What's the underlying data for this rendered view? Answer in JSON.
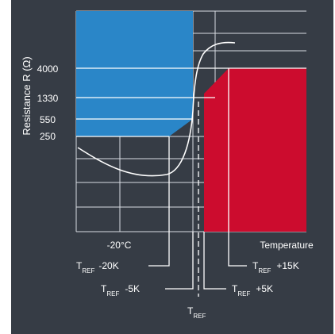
{
  "colors": {
    "background": "#363c45",
    "cold_zone": "#2a86c8",
    "hot_zone": "#cc0c2e",
    "grid": "#d8dce2",
    "curve": "#ffffff",
    "text": "#ffffff"
  },
  "y_axis": {
    "label": "Resistance R (Ω)",
    "ticks": [
      "4000",
      "1330",
      "550",
      "250"
    ]
  },
  "x_axis": {
    "left_label": "-20°C",
    "right_label": "Temperature"
  },
  "markers": {
    "minus20k": {
      "prefix": "T",
      "sub": "REF",
      "suffix": "-20K"
    },
    "minus5k": {
      "prefix": "T",
      "sub": "REF",
      "suffix": "-5K"
    },
    "ref": {
      "prefix": "T",
      "sub": "REF"
    },
    "plus5k": {
      "prefix": "T",
      "sub": "REF",
      "suffix": "+5K"
    },
    "plus15k": {
      "prefix": "T",
      "sub": "REF",
      "suffix": "+15K"
    }
  }
}
